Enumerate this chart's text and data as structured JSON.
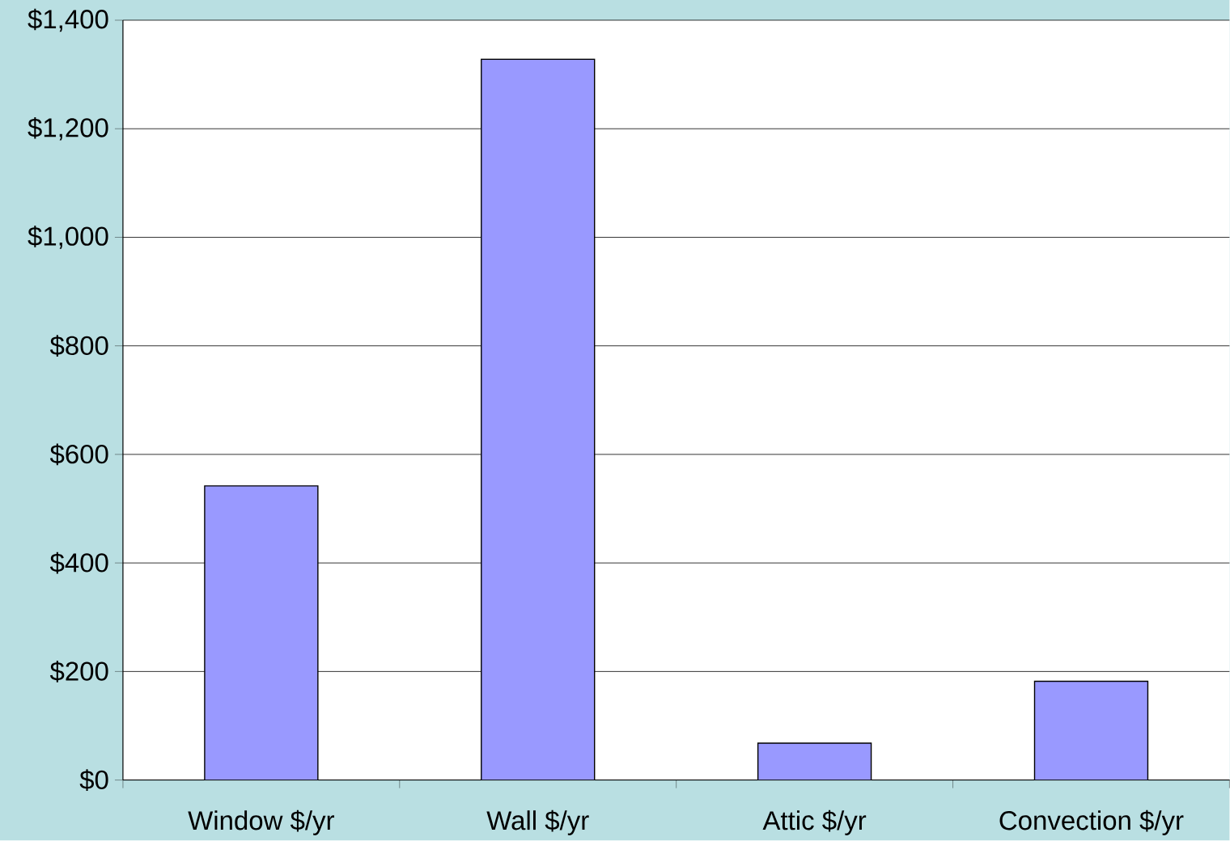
{
  "chart_data": {
    "type": "bar",
    "categories": [
      "Window $/yr",
      "Wall $/yr",
      "Attic $/yr",
      "Convection $/yr"
    ],
    "values": [
      542,
      1328,
      68,
      182
    ],
    "color": "#9999ff",
    "ylim": [
      0,
      1400
    ],
    "yticks": [
      {
        "value": 0,
        "label": "$0"
      },
      {
        "value": 200,
        "label": "$200"
      },
      {
        "value": 400,
        "label": "$400"
      },
      {
        "value": 600,
        "label": "$600"
      },
      {
        "value": 800,
        "label": "$800"
      },
      {
        "value": 1000,
        "label": "$1,000"
      },
      {
        "value": 1200,
        "label": "$1,200"
      },
      {
        "value": 1400,
        "label": "$1,400"
      }
    ],
    "grid": "y"
  }
}
